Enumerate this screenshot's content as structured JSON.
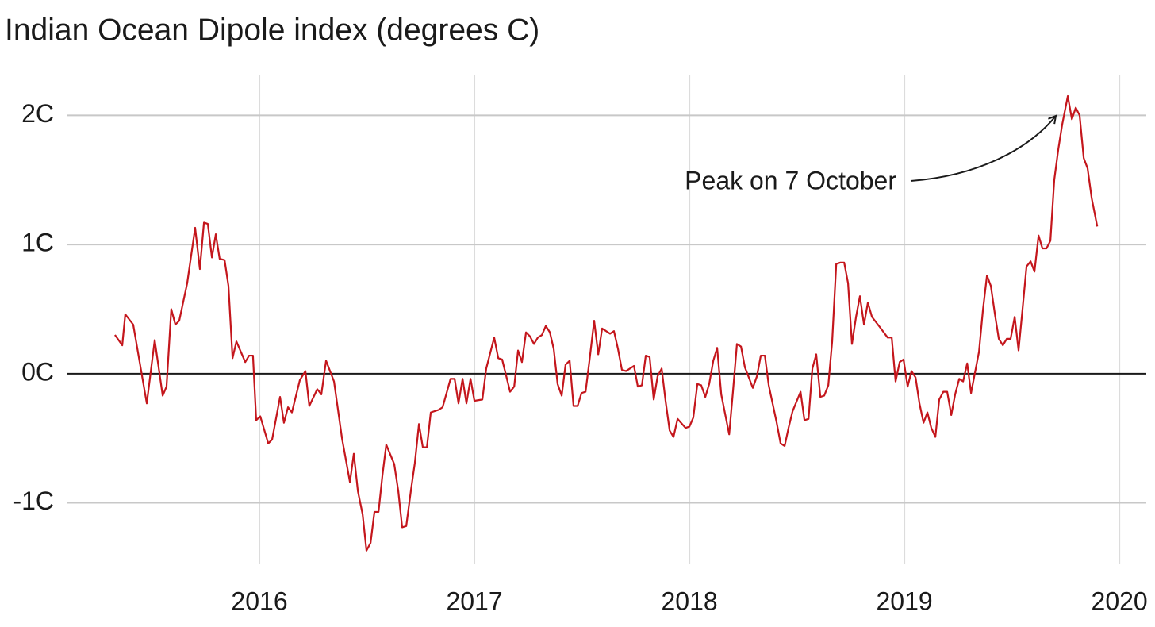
{
  "chart_data": {
    "type": "line",
    "title": "Indian Ocean Dipole index (degrees C)",
    "annotation": "Peak on 7 October",
    "xlim": [
      2015.107,
      2020.125
    ],
    "xticks": [
      2016,
      2017,
      2018,
      2019,
      2020
    ],
    "ylim": [
      -1.47,
      2.31
    ],
    "yticks": [
      {
        "value": -1,
        "label": "-1C"
      },
      {
        "value": 0,
        "label": "0C"
      },
      {
        "value": 1,
        "label": "1C"
      },
      {
        "value": 2,
        "label": "2C"
      }
    ],
    "grid": true,
    "series": [
      {
        "color": "#c4161c",
        "x": [
          2015.328,
          2015.362,
          2015.376,
          2015.413,
          2015.476,
          2015.513,
          2015.55,
          2015.568,
          2015.59,
          2015.609,
          2015.627,
          2015.664,
          2015.701,
          2015.723,
          2015.742,
          2015.76,
          2015.779,
          2015.797,
          2015.815,
          2015.838,
          2015.856,
          2015.875,
          2015.893,
          2015.934,
          2015.952,
          2015.97,
          2015.985,
          2016.004,
          2016.041,
          2016.059,
          2016.096,
          2016.114,
          2016.133,
          2016.151,
          2016.188,
          2016.214,
          2016.232,
          2016.269,
          2016.288,
          2016.31,
          2016.347,
          2016.384,
          2016.421,
          2016.439,
          2016.458,
          2016.48,
          2016.498,
          2016.517,
          2016.535,
          2016.554,
          2016.572,
          2016.59,
          2016.627,
          2016.646,
          2016.664,
          2016.683,
          2016.705,
          2016.723,
          2016.742,
          2016.76,
          2016.779,
          2016.797,
          2016.834,
          2016.852,
          2016.889,
          2016.908,
          2016.926,
          2016.945,
          2016.963,
          2016.982,
          2017.0,
          2017.037,
          2017.055,
          2017.092,
          2017.111,
          2017.129,
          2017.166,
          2017.185,
          2017.203,
          2017.221,
          2017.24,
          2017.258,
          2017.277,
          2017.295,
          2017.314,
          2017.332,
          2017.351,
          2017.369,
          2017.387,
          2017.406,
          2017.424,
          2017.443,
          2017.461,
          2017.48,
          2017.498,
          2017.517,
          2017.535,
          2017.557,
          2017.576,
          2017.594,
          2017.631,
          2017.649,
          2017.668,
          2017.686,
          2017.705,
          2017.742,
          2017.76,
          2017.779,
          2017.797,
          2017.815,
          2017.834,
          2017.852,
          2017.871,
          2017.889,
          2017.908,
          2017.926,
          2017.945,
          2017.982,
          2018.0,
          2018.018,
          2018.037,
          2018.055,
          2018.074,
          2018.092,
          2018.111,
          2018.129,
          2018.148,
          2018.185,
          2018.203,
          2018.221,
          2018.24,
          2018.258,
          2018.295,
          2018.314,
          2018.332,
          2018.351,
          2018.369,
          2018.406,
          2018.424,
          2018.443,
          2018.461,
          2018.48,
          2018.517,
          2018.535,
          2018.554,
          2018.572,
          2018.59,
          2018.609,
          2018.627,
          2018.646,
          2018.664,
          2018.683,
          2018.701,
          2018.72,
          2018.738,
          2018.756,
          2018.775,
          2018.793,
          2018.812,
          2018.83,
          2018.849,
          2018.886,
          2018.922,
          2018.941,
          2018.959,
          2018.978,
          2018.996,
          2019.015,
          2019.033,
          2019.052,
          2019.07,
          2019.089,
          2019.107,
          2019.125,
          2019.144,
          2019.162,
          2019.181,
          2019.199,
          2019.218,
          2019.236,
          2019.255,
          2019.273,
          2019.292,
          2019.31,
          2019.347,
          2019.365,
          2019.384,
          2019.402,
          2019.421,
          2019.439,
          2019.458,
          2019.476,
          2019.494,
          2019.513,
          2019.531,
          2019.55,
          2019.568,
          2019.587,
          2019.605,
          2019.624,
          2019.642,
          2019.661,
          2019.679,
          2019.697,
          2019.716,
          2019.734,
          2019.76,
          2019.779,
          2019.797,
          2019.815,
          2019.834,
          2019.852,
          2019.871,
          2019.897
        ],
        "values": [
          0.3,
          0.22,
          0.46,
          0.38,
          -0.23,
          0.26,
          -0.17,
          -0.1,
          0.5,
          0.38,
          0.41,
          0.7,
          1.13,
          0.81,
          1.17,
          1.16,
          0.9,
          1.08,
          0.89,
          0.88,
          0.68,
          0.12,
          0.25,
          0.09,
          0.14,
          0.14,
          -0.36,
          -0.33,
          -0.54,
          -0.51,
          -0.18,
          -0.38,
          -0.26,
          -0.3,
          -0.05,
          0.02,
          -0.25,
          -0.12,
          -0.16,
          0.1,
          -0.06,
          -0.5,
          -0.84,
          -0.62,
          -0.91,
          -1.09,
          -1.37,
          -1.31,
          -1.07,
          -1.07,
          -0.79,
          -0.55,
          -0.7,
          -0.91,
          -1.19,
          -1.18,
          -0.9,
          -0.69,
          -0.39,
          -0.57,
          -0.57,
          -0.3,
          -0.28,
          -0.26,
          -0.04,
          -0.04,
          -0.23,
          -0.04,
          -0.23,
          -0.04,
          -0.21,
          -0.2,
          0.04,
          0.28,
          0.12,
          0.11,
          -0.14,
          -0.1,
          0.18,
          0.09,
          0.32,
          0.29,
          0.23,
          0.28,
          0.3,
          0.37,
          0.32,
          0.19,
          -0.08,
          -0.17,
          0.07,
          0.1,
          -0.25,
          -0.25,
          -0.15,
          -0.14,
          0.1,
          0.41,
          0.15,
          0.35,
          0.31,
          0.33,
          0.19,
          0.03,
          0.02,
          0.06,
          -0.1,
          -0.09,
          0.14,
          0.13,
          -0.2,
          -0.02,
          0.04,
          -0.21,
          -0.44,
          -0.49,
          -0.35,
          -0.42,
          -0.41,
          -0.34,
          -0.08,
          -0.09,
          -0.18,
          -0.08,
          0.1,
          0.2,
          -0.16,
          -0.47,
          -0.13,
          0.23,
          0.21,
          0.05,
          -0.11,
          -0.02,
          0.14,
          0.14,
          -0.09,
          -0.38,
          -0.54,
          -0.56,
          -0.42,
          -0.29,
          -0.14,
          -0.36,
          -0.35,
          0.04,
          0.15,
          -0.18,
          -0.17,
          -0.09,
          0.25,
          0.85,
          0.86,
          0.86,
          0.7,
          0.23,
          0.44,
          0.6,
          0.38,
          0.55,
          0.44,
          0.36,
          0.28,
          0.28,
          -0.06,
          0.09,
          0.11,
          -0.1,
          0.02,
          -0.03,
          -0.23,
          -0.38,
          -0.3,
          -0.42,
          -0.49,
          -0.2,
          -0.14,
          -0.14,
          -0.32,
          -0.16,
          -0.04,
          -0.06,
          0.08,
          -0.15,
          0.17,
          0.49,
          0.76,
          0.68,
          0.46,
          0.27,
          0.22,
          0.27,
          0.27,
          0.44,
          0.18,
          0.51,
          0.83,
          0.87,
          0.79,
          1.07,
          0.97,
          0.97,
          1.03,
          1.5,
          1.74,
          1.93,
          2.15,
          1.97,
          2.06,
          2.0,
          1.67,
          1.59,
          1.36,
          1.14
        ]
      }
    ]
  }
}
